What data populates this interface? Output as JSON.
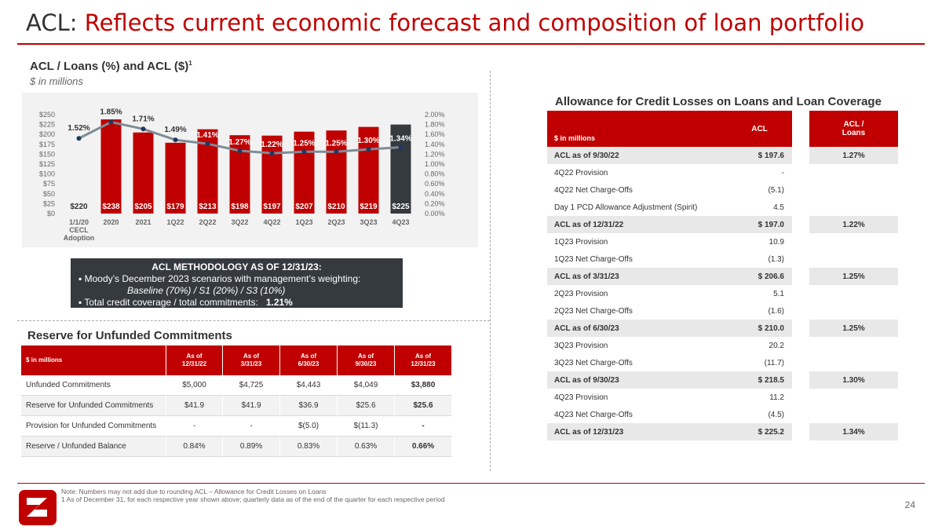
{
  "header": {
    "title_lead": "ACL:",
    "title_rest": "Reflects current economic forecast and composition of loan portfolio"
  },
  "chart_section": {
    "title": "ACL / Loans (%) and ACL ($)",
    "title_sup": "1",
    "subtitle": "$ in millions"
  },
  "chart_data": {
    "type": "bar",
    "categories": [
      "1/1/20 CECL Adoption",
      "2020",
      "2021",
      "1Q22",
      "2Q22",
      "3Q22",
      "4Q22",
      "1Q23",
      "2Q23",
      "3Q23",
      "4Q23"
    ],
    "category_lines": [
      [
        "1/1/20",
        "CECL",
        "Adoption"
      ],
      [
        "2020"
      ],
      [
        "2021"
      ],
      [
        "1Q22"
      ],
      [
        "2Q22"
      ],
      [
        "3Q22"
      ],
      [
        "4Q22"
      ],
      [
        "1Q23"
      ],
      [
        "2Q23"
      ],
      [
        "3Q23"
      ],
      [
        "4Q23"
      ]
    ],
    "series": [
      {
        "name": "ACL ($)",
        "type": "bar",
        "values": [
          220,
          238,
          205,
          179,
          213,
          198,
          197,
          207,
          210,
          219,
          225
        ],
        "labels": [
          "$220",
          "$238",
          "$205",
          "$179",
          "$213",
          "$198",
          "$197",
          "$207",
          "$210",
          "$219",
          "$225"
        ]
      },
      {
        "name": "ACL / Loans (%)",
        "type": "line",
        "values": [
          1.52,
          1.85,
          1.71,
          1.49,
          1.41,
          1.27,
          1.22,
          1.25,
          1.25,
          1.3,
          1.34
        ],
        "labels": [
          "1.52%",
          "1.85%",
          "1.71%",
          "1.49%",
          "1.41%",
          "1.27%",
          "1.22%",
          "1.25%",
          "1.25%",
          "1.30%",
          "1.34%"
        ]
      }
    ],
    "y_left_ticks": [
      "$0",
      "$25",
      "$50",
      "$75",
      "$100",
      "$125",
      "$150",
      "$175",
      "$200",
      "$225",
      "$250"
    ],
    "y_right_ticks": [
      "0.00%",
      "0.20%",
      "0.40%",
      "0.60%",
      "0.80%",
      "1.00%",
      "1.20%",
      "1.40%",
      "1.60%",
      "1.80%",
      "2.00%"
    ],
    "ylim_left": [
      0,
      250
    ],
    "ylim_right": [
      0,
      2.0
    ],
    "bar_colors": [
      "#f2f2f2",
      "#c00000",
      "#c00000",
      "#c00000",
      "#c00000",
      "#c00000",
      "#c00000",
      "#c00000",
      "#c00000",
      "#c00000",
      "#353a3f"
    ],
    "line_color": "#7f8c96"
  },
  "methodology": {
    "heading": "ACL METHODOLOGY AS OF 12/31/23:",
    "bullet1": "Moody’s December 2023 scenarios with management’s weighting:",
    "bullet1_detail": "Baseline (70%) / S1 (20%) / S3 (10%)",
    "bullet2": "Total credit coverage / total commitments:",
    "bullet2_value": "1.21%"
  },
  "unfunded": {
    "title": "Reserve for Unfunded Commitments",
    "headers": [
      "$ in millions",
      "As of\n12/31/22",
      "As of\n3/31/23",
      "As of\n6/30/23",
      "As of\n9/30/23",
      "As of\n12/31/23"
    ],
    "rows": [
      [
        "Unfunded Commitments",
        "$5,000",
        "$4,725",
        "$4,443",
        "$4,049",
        "$3,880"
      ],
      [
        "Reserve for Unfunded Commitments",
        "$41.9",
        "$41.9",
        "$36.9",
        "$25.6",
        "$25.6"
      ],
      [
        "Provision for Unfunded Commitments",
        "-",
        "-",
        "$(5.0)",
        "$(11.3)",
        "-"
      ],
      [
        "Reserve / Unfunded Balance",
        "0.84%",
        "0.89%",
        "0.83%",
        "0.63%",
        "0.66%"
      ]
    ]
  },
  "allowance": {
    "title": "Allowance for Credit Losses on Loans and Loan Coverage",
    "headers": [
      "$ in millions",
      "ACL",
      "ACL /\nLoans"
    ],
    "rows": [
      {
        "label": "ACL as of 9/30/22",
        "acl": "$  197.6",
        "ratio": "1.27%",
        "sub": true
      },
      {
        "label": "4Q22 Provision",
        "acl": "-",
        "ratio": "",
        "sub": false
      },
      {
        "label": "4Q22 Net Charge-Offs",
        "acl": "(5.1)",
        "ratio": "",
        "sub": false
      },
      {
        "label": "Day 1 PCD Allowance Adjustment (Spirit)",
        "acl": "4.5",
        "ratio": "",
        "sub": false
      },
      {
        "label": "ACL as of 12/31/22",
        "acl": "$  197.0",
        "ratio": "1.22%",
        "sub": true
      },
      {
        "label": "1Q23 Provision",
        "acl": "10.9",
        "ratio": "",
        "sub": false
      },
      {
        "label": "1Q23 Net Charge-Offs",
        "acl": "(1.3)",
        "ratio": "",
        "sub": false
      },
      {
        "label": "ACL as of 3/31/23",
        "acl": "$  206.6",
        "ratio": "1.25%",
        "sub": true
      },
      {
        "label": "2Q23 Provision",
        "acl": "5.1",
        "ratio": "",
        "sub": false
      },
      {
        "label": "2Q23 Net Charge-Offs",
        "acl": "(1.6)",
        "ratio": "",
        "sub": false
      },
      {
        "label": "ACL as of 6/30/23",
        "acl": "$  210.0",
        "ratio": "1.25%",
        "sub": true
      },
      {
        "label": "3Q23 Provision",
        "acl": "20.2",
        "ratio": "",
        "sub": false
      },
      {
        "label": "3Q23 Net Charge-Offs",
        "acl": "(11.7)",
        "ratio": "",
        "sub": false
      },
      {
        "label": "ACL as of 9/30/23",
        "acl": "$ 218.5",
        "ratio": "1.30%",
        "sub": true
      },
      {
        "label": "4Q23 Provision",
        "acl": "11.2",
        "ratio": "",
        "sub": false
      },
      {
        "label": "4Q23 Net Charge-Offs",
        "acl": "(4.5)",
        "ratio": "",
        "sub": false
      },
      {
        "label": "ACL as of 12/31/23",
        "acl": "$ 225.2",
        "ratio": "1.34%",
        "sub": true
      }
    ]
  },
  "footnote": {
    "line1": "Note: Numbers may not add due to rounding     ACL – Allowance for Credit Losses on Loans",
    "line2": "1   As of December 31, for each respective year shown above; quarterly data as of the end of the quarter for each respective period"
  },
  "page_number": "24",
  "colors": {
    "accent": "#c00000",
    "dark": "#353a3f",
    "panel": "#f2f2f2"
  },
  "logo_icon": "company-logo-icon"
}
